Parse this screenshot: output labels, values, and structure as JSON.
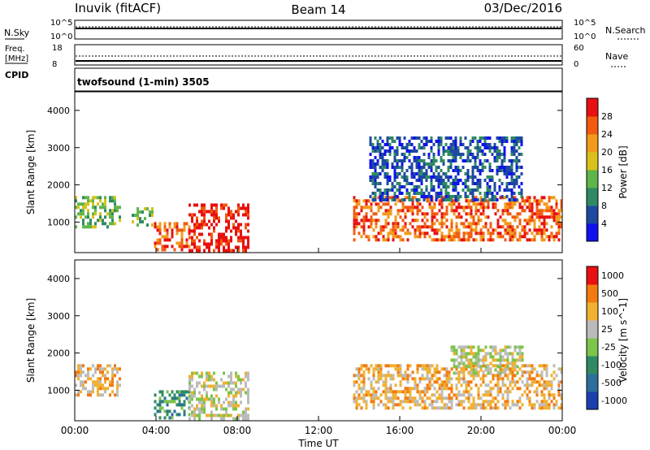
{
  "header": {
    "station": "Inuvik (fitACF)",
    "beam": "Beam 14",
    "date": "03/Dec/2016"
  },
  "panel_top": {
    "left_label": "N.Sky",
    "right_label": "N.Search",
    "left_ticks": [
      "10^5",
      "10^0"
    ],
    "right_ticks": [
      "10^5",
      "10^0"
    ]
  },
  "panel_freq": {
    "left_label_1": "Freq.",
    "left_label_2": "[MHz]",
    "cpid_label": "CPID",
    "right_label": "Nave",
    "left_ticks": [
      "18",
      "8"
    ],
    "right_ticks": [
      "60",
      "0"
    ]
  },
  "mode_label": "twofsound (1-min) 3505",
  "x_axis": {
    "label": "Time UT",
    "ticks": [
      "00:00",
      "04:00",
      "08:00",
      "12:00",
      "16:00",
      "20:00",
      "00:00"
    ]
  },
  "power_panel": {
    "ylabel": "Slant Range [km]",
    "yticks": [
      "1000",
      "2000",
      "3000",
      "4000"
    ],
    "colorbar_label": "Power [dB]",
    "colorbar_ticks": [
      "4",
      "8",
      "12",
      "16",
      "20",
      "24",
      "28"
    ],
    "colors": [
      "#1111ee",
      "#1d4aa0",
      "#2f8a63",
      "#5fb54a",
      "#d8c21a",
      "#f29a1a",
      "#f25a10",
      "#e81010"
    ]
  },
  "velocity_panel": {
    "ylabel": "Slant Range [km]",
    "yticks": [
      "1000",
      "2000",
      "3000",
      "4000"
    ],
    "colorbar_label": "Velocity [m s^-1]",
    "colorbar_ticks": [
      "1000",
      "500",
      "100",
      "25",
      "-25",
      "-100",
      "-500",
      "-1000"
    ],
    "colors": [
      "#1d3fae",
      "#2b6f9a",
      "#2f8a63",
      "#7cc44a",
      "#bbbbbb",
      "#f0b030",
      "#f27a10",
      "#e81010"
    ]
  },
  "chart_data": {
    "type": "heatmap",
    "x_range_hours": [
      0,
      24
    ],
    "y_range_km": [
      180,
      4500
    ],
    "power_regions": [
      {
        "t0": 0.0,
        "t1": 2.2,
        "r0": 900,
        "r1": 1700,
        "level": 3
      },
      {
        "t0": 2.8,
        "t1": 3.8,
        "r0": 900,
        "r1": 1400,
        "level": 3
      },
      {
        "t0": 3.9,
        "t1": 5.6,
        "r0": 250,
        "r1": 1000,
        "level": 6
      },
      {
        "t0": 5.6,
        "t1": 8.5,
        "r0": 250,
        "r1": 1500,
        "level": 7
      },
      {
        "t0": 13.7,
        "t1": 24.0,
        "r0": 500,
        "r1": 1700,
        "level": 6
      },
      {
        "t0": 14.5,
        "t1": 22.0,
        "r0": 1600,
        "r1": 3300,
        "level": 1
      }
    ],
    "velocity_regions": [
      {
        "t0": 0.0,
        "t1": 2.2,
        "r0": 900,
        "r1": 1700,
        "level": 5
      },
      {
        "t0": 3.9,
        "t1": 5.6,
        "r0": 250,
        "r1": 1000,
        "level": 2
      },
      {
        "t0": 5.6,
        "t1": 8.5,
        "r0": 250,
        "r1": 1500,
        "level": 4
      },
      {
        "t0": 13.7,
        "t1": 24.0,
        "r0": 500,
        "r1": 1700,
        "level": 5
      },
      {
        "t0": 18.5,
        "t1": 22.0,
        "r0": 1500,
        "r1": 2200,
        "level": 4
      }
    ]
  }
}
